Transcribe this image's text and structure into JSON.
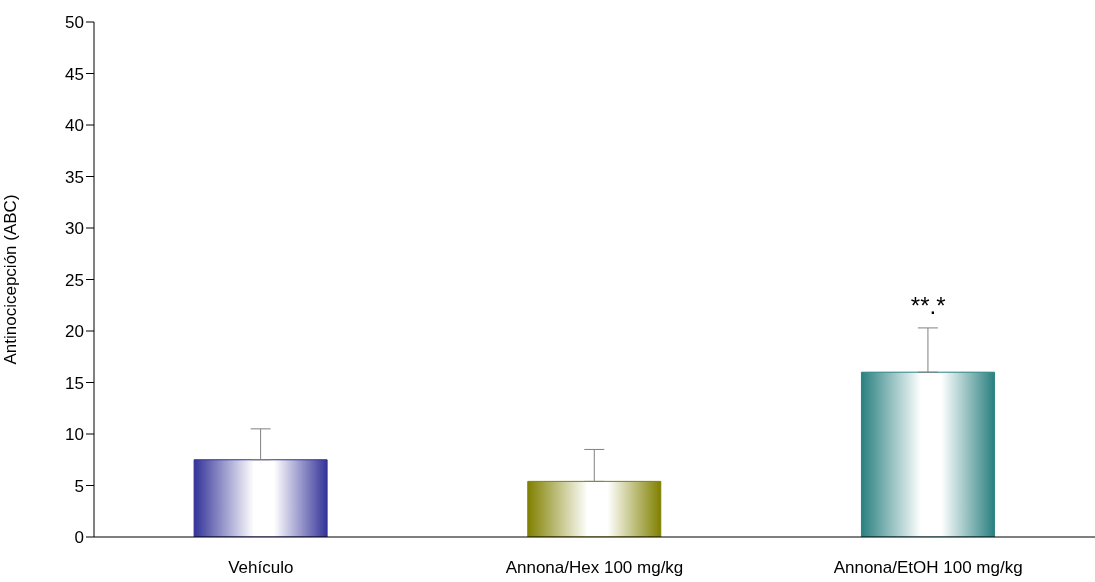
{
  "chart_data": {
    "type": "bar",
    "ylabel": "Antinocicepción (ABC)",
    "categories": [
      "Vehículo",
      "Annona/Hex 100 mg/kg",
      "Annona/EtOH 100 mg/kg"
    ],
    "values": [
      7.5,
      5.4,
      16.0
    ],
    "errors": [
      [
        7.5,
        10.5
      ],
      [
        5.4,
        8.5
      ],
      [
        16.0,
        20.3
      ]
    ],
    "colors": [
      "#333399",
      "#808000",
      "#2a8080"
    ],
    "ylim": [
      0,
      50
    ],
    "yticks": [
      0,
      5,
      10,
      15,
      20,
      25,
      30,
      35,
      40,
      45,
      50
    ],
    "grid": false,
    "legend": false,
    "annotations": [
      "**.*"
    ]
  }
}
